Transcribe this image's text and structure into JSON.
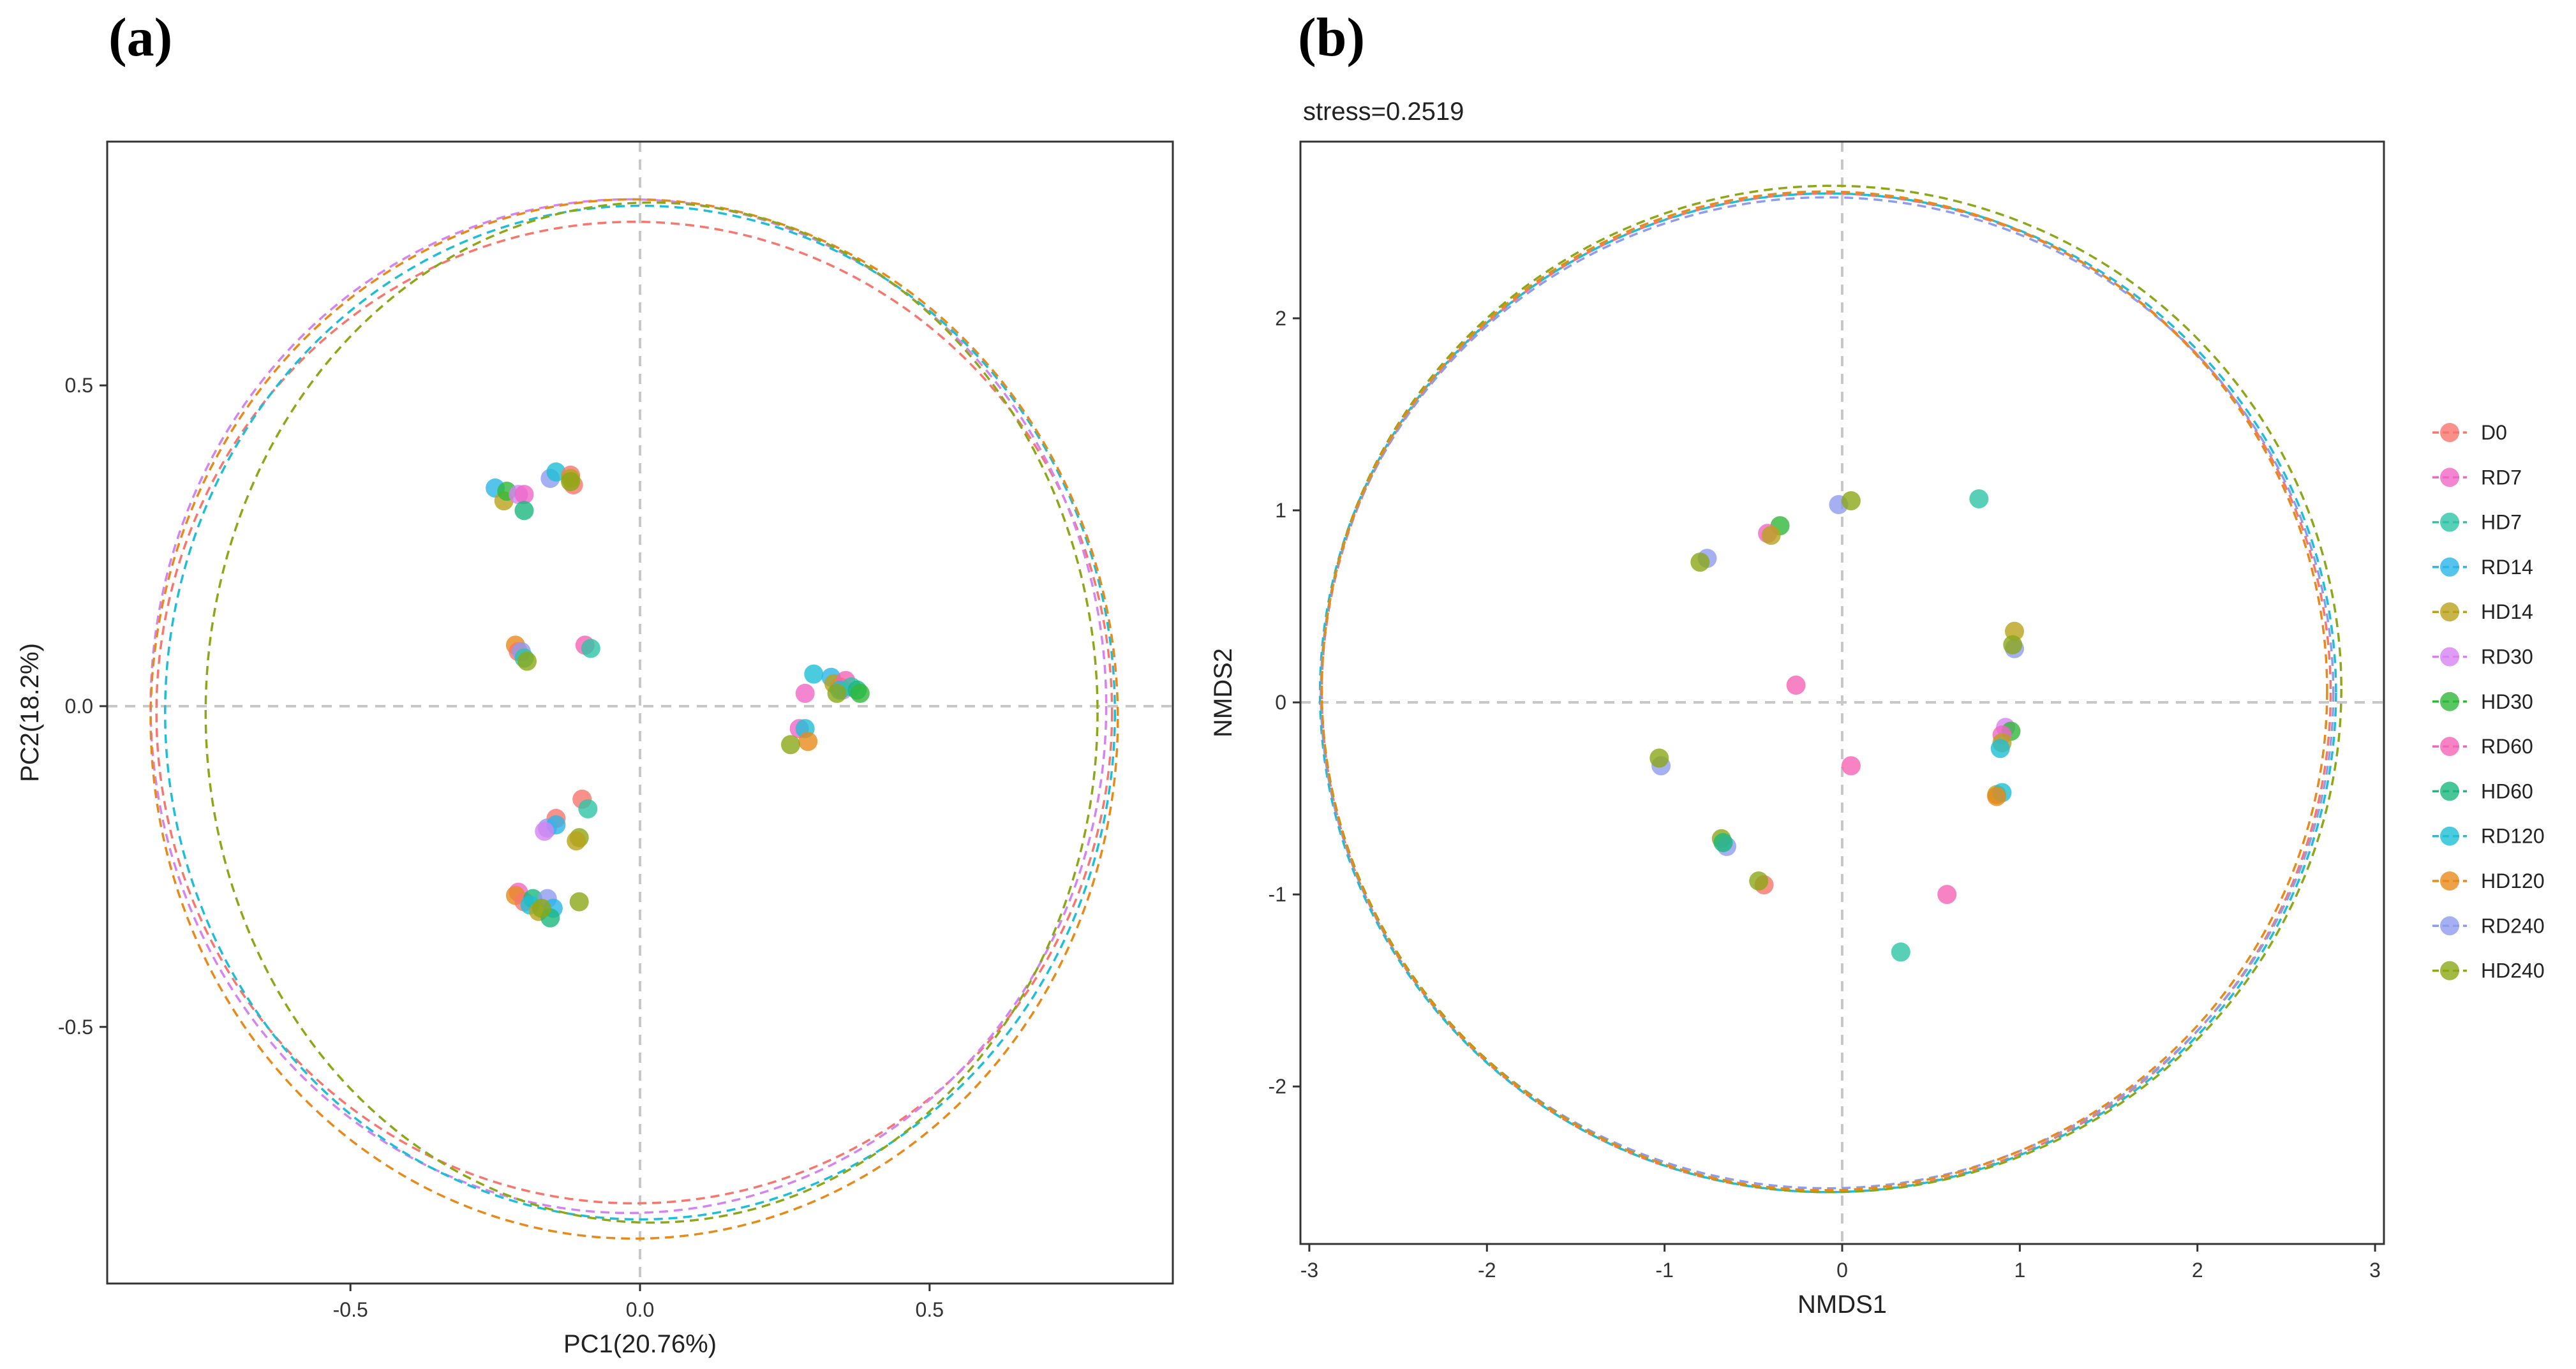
{
  "colors": {
    "D0": "#F8766D",
    "RD7": "#F066C5",
    "HD7": "#2EC4A6",
    "RD14": "#2BB5E8",
    "HD14": "#B9A21B",
    "RD30": "#D683F2",
    "HD30": "#31B83A",
    "RD60": "#F564B6",
    "HD60": "#1CB87E",
    "RD120": "#1EBFD6",
    "HD120": "#E88A1A",
    "RD240": "#8E9CF0",
    "HD240": "#8CA818"
  },
  "legend": [
    "D0",
    "RD7",
    "HD7",
    "RD14",
    "HD14",
    "RD30",
    "HD30",
    "RD60",
    "HD60",
    "RD120",
    "HD120",
    "RD240",
    "HD240"
  ],
  "chart_data": [
    {
      "panel": "(a)",
      "type": "scatter",
      "title": "",
      "xlabel": "PC1(20.76%)",
      "ylabel": "PC2(18.2%)",
      "xlim": [
        -0.92,
        0.92
      ],
      "ylim": [
        -0.9,
        0.88
      ],
      "xticks": [
        -0.5,
        0.0,
        0.5
      ],
      "xtick_labels": [
        "-0.5",
        "0.0",
        "0.5"
      ],
      "yticks": [
        -0.5,
        0.0,
        0.5
      ],
      "ytick_labels": [
        "-0.5",
        "0.0",
        "0.5"
      ],
      "ellipses": [
        {
          "group": "D0",
          "cx": -0.01,
          "cy": -0.01,
          "rx": 0.825,
          "ry": 0.765
        },
        {
          "group": "RD30",
          "cx": -0.02,
          "cy": 0.0,
          "rx": 0.825,
          "ry": 0.79
        },
        {
          "group": "RD120",
          "cx": 0.0,
          "cy": -0.01,
          "rx": 0.82,
          "ry": 0.79
        },
        {
          "group": "HD120",
          "cx": -0.01,
          "cy": -0.02,
          "rx": 0.835,
          "ry": 0.81
        },
        {
          "group": "HD240",
          "cx": 0.02,
          "cy": -0.01,
          "rx": 0.77,
          "ry": 0.795
        }
      ],
      "points": [
        {
          "group": "RD14",
          "x": -0.25,
          "y": 0.34
        },
        {
          "group": "HD14",
          "x": -0.235,
          "y": 0.32
        },
        {
          "group": "HD30",
          "x": -0.23,
          "y": 0.335
        },
        {
          "group": "RD30",
          "x": -0.21,
          "y": 0.33
        },
        {
          "group": "RD7",
          "x": -0.2,
          "y": 0.33
        },
        {
          "group": "HD60",
          "x": -0.2,
          "y": 0.305
        },
        {
          "group": "RD240",
          "x": -0.155,
          "y": 0.355
        },
        {
          "group": "RD120",
          "x": -0.145,
          "y": 0.365
        },
        {
          "group": "D0",
          "x": -0.12,
          "y": 0.36
        },
        {
          "group": "D0",
          "x": -0.115,
          "y": 0.345
        },
        {
          "group": "HD14",
          "x": -0.12,
          "y": 0.355
        },
        {
          "group": "HD240",
          "x": -0.12,
          "y": 0.35
        },
        {
          "group": "HD120",
          "x": -0.215,
          "y": 0.095
        },
        {
          "group": "D0",
          "x": -0.21,
          "y": 0.085
        },
        {
          "group": "RD240",
          "x": -0.205,
          "y": 0.085
        },
        {
          "group": "HD7",
          "x": -0.2,
          "y": 0.075
        },
        {
          "group": "HD240",
          "x": -0.195,
          "y": 0.07
        },
        {
          "group": "RD60",
          "x": -0.095,
          "y": 0.095
        },
        {
          "group": "HD7",
          "x": -0.085,
          "y": 0.09
        },
        {
          "group": "D0",
          "x": -0.1,
          "y": -0.145
        },
        {
          "group": "HD7",
          "x": -0.09,
          "y": -0.16
        },
        {
          "group": "D0",
          "x": -0.145,
          "y": -0.175
        },
        {
          "group": "RD240",
          "x": -0.16,
          "y": -0.19
        },
        {
          "group": "RD14",
          "x": -0.145,
          "y": -0.185
        },
        {
          "group": "RD30",
          "x": -0.165,
          "y": -0.195
        },
        {
          "group": "HD240",
          "x": -0.105,
          "y": -0.205
        },
        {
          "group": "HD14",
          "x": -0.11,
          "y": -0.21
        },
        {
          "group": "RD7",
          "x": -0.21,
          "y": -0.29
        },
        {
          "group": "HD120",
          "x": -0.215,
          "y": -0.295
        },
        {
          "group": "D0",
          "x": -0.2,
          "y": -0.305
        },
        {
          "group": "HD60",
          "x": -0.185,
          "y": -0.3
        },
        {
          "group": "RD120",
          "x": -0.19,
          "y": -0.31
        },
        {
          "group": "HD14",
          "x": -0.175,
          "y": -0.32
        },
        {
          "group": "RD240",
          "x": -0.16,
          "y": -0.3
        },
        {
          "group": "RD14",
          "x": -0.15,
          "y": -0.315
        },
        {
          "group": "HD60",
          "x": -0.155,
          "y": -0.33
        },
        {
          "group": "HD240",
          "x": -0.17,
          "y": -0.315
        },
        {
          "group": "HD240",
          "x": -0.105,
          "y": -0.305
        },
        {
          "group": "RD120",
          "x": 0.3,
          "y": 0.05
        },
        {
          "group": "RD7",
          "x": 0.285,
          "y": 0.02
        },
        {
          "group": "RD14",
          "x": 0.33,
          "y": 0.045
        },
        {
          "group": "HD14",
          "x": 0.335,
          "y": 0.035
        },
        {
          "group": "HD120",
          "x": 0.345,
          "y": 0.03
        },
        {
          "group": "RD30",
          "x": 0.35,
          "y": 0.025
        },
        {
          "group": "RD60",
          "x": 0.355,
          "y": 0.04
        },
        {
          "group": "RD120",
          "x": 0.345,
          "y": 0.025
        },
        {
          "group": "HD7",
          "x": 0.365,
          "y": 0.03
        },
        {
          "group": "HD240",
          "x": 0.34,
          "y": 0.02
        },
        {
          "group": "HD60",
          "x": 0.375,
          "y": 0.025
        },
        {
          "group": "HD30",
          "x": 0.38,
          "y": 0.02
        },
        {
          "group": "RD7",
          "x": 0.275,
          "y": -0.035
        },
        {
          "group": "RD120",
          "x": 0.285,
          "y": -0.035
        },
        {
          "group": "HD120",
          "x": 0.29,
          "y": -0.055
        },
        {
          "group": "HD240",
          "x": 0.26,
          "y": -0.06
        }
      ]
    },
    {
      "panel": "(b)",
      "type": "scatter",
      "title": "stress=0.2519",
      "xlabel": "NMDS1",
      "ylabel": "NMDS2",
      "xlim": [
        -3.05,
        3.05
      ],
      "ylim": [
        -2.82,
        2.92
      ],
      "xticks": [
        -3,
        -2,
        -1,
        0,
        1,
        2,
        3
      ],
      "xtick_labels": [
        "-3",
        "-2",
        "-1",
        "0",
        "1",
        "2",
        "3"
      ],
      "yticks": [
        -2,
        -1,
        0,
        1,
        2
      ],
      "ytick_labels": [
        "-2",
        "-1",
        "0",
        "1",
        "2"
      ],
      "ellipses": [
        {
          "group": "D0",
          "cx": -0.09,
          "cy": 0.05,
          "rx": 2.84,
          "ry": 2.6
        },
        {
          "group": "RD120",
          "cx": -0.08,
          "cy": 0.05,
          "rx": 2.86,
          "ry": 2.6
        },
        {
          "group": "RD240",
          "cx": -0.085,
          "cy": 0.05,
          "rx": 2.85,
          "ry": 2.58
        },
        {
          "group": "HD240",
          "cx": -0.06,
          "cy": 0.07,
          "rx": 2.87,
          "ry": 2.62
        },
        {
          "group": "HD120",
          "cx": -0.1,
          "cy": 0.06,
          "rx": 2.83,
          "ry": 2.6
        }
      ],
      "points": [
        {
          "group": "RD240",
          "x": -0.02,
          "y": 1.03
        },
        {
          "group": "HD240",
          "x": 0.05,
          "y": 1.05
        },
        {
          "group": "HD7",
          "x": 0.77,
          "y": 1.06
        },
        {
          "group": "HD30",
          "x": -0.35,
          "y": 0.92
        },
        {
          "group": "RD7",
          "x": -0.42,
          "y": 0.88
        },
        {
          "group": "HD14",
          "x": -0.4,
          "y": 0.87
        },
        {
          "group": "RD240",
          "x": -0.76,
          "y": 0.75
        },
        {
          "group": "HD240",
          "x": -0.8,
          "y": 0.73
        },
        {
          "group": "HD14",
          "x": 0.97,
          "y": 0.37
        },
        {
          "group": "RD240",
          "x": 0.97,
          "y": 0.28
        },
        {
          "group": "HD240",
          "x": 0.96,
          "y": 0.3
        },
        {
          "group": "RD60",
          "x": -0.26,
          "y": 0.09
        },
        {
          "group": "RD30",
          "x": 0.92,
          "y": -0.13
        },
        {
          "group": "HD30",
          "x": 0.95,
          "y": -0.15
        },
        {
          "group": "RD7",
          "x": 0.9,
          "y": -0.17
        },
        {
          "group": "HD14",
          "x": 0.9,
          "y": -0.21
        },
        {
          "group": "RD120",
          "x": 0.89,
          "y": -0.24
        },
        {
          "group": "RD60",
          "x": 0.05,
          "y": -0.33
        },
        {
          "group": "RD240",
          "x": -1.02,
          "y": -0.33
        },
        {
          "group": "HD240",
          "x": -1.03,
          "y": -0.29
        },
        {
          "group": "HD14",
          "x": 0.87,
          "y": -0.48
        },
        {
          "group": "RD120",
          "x": 0.9,
          "y": -0.47
        },
        {
          "group": "HD120",
          "x": 0.87,
          "y": -0.49
        },
        {
          "group": "HD240",
          "x": -0.68,
          "y": -0.71
        },
        {
          "group": "RD240",
          "x": -0.65,
          "y": -0.75
        },
        {
          "group": "HD60",
          "x": -0.67,
          "y": -0.73
        },
        {
          "group": "D0",
          "x": -0.44,
          "y": -0.95
        },
        {
          "group": "HD240",
          "x": -0.47,
          "y": -0.93
        },
        {
          "group": "RD60",
          "x": 0.59,
          "y": -1.0
        },
        {
          "group": "HD7",
          "x": 0.33,
          "y": -1.3
        }
      ]
    }
  ]
}
